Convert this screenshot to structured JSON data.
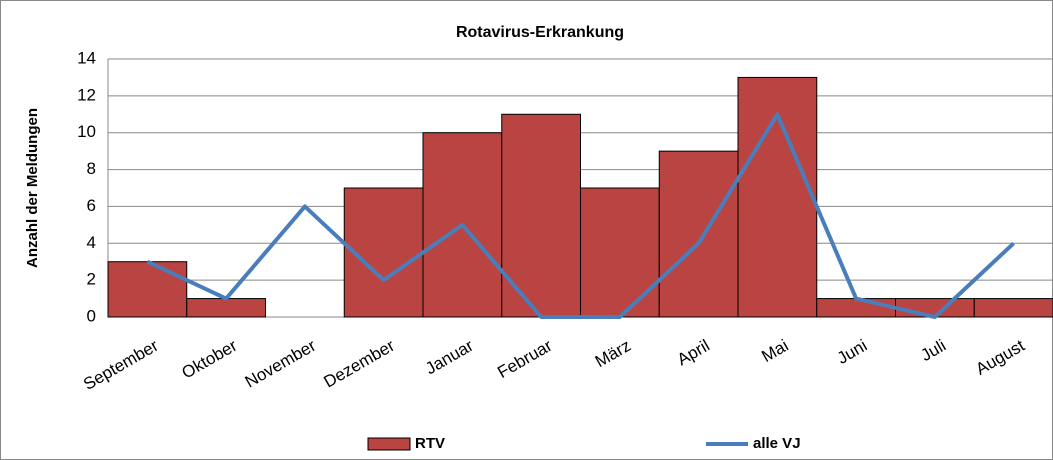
{
  "chart_data": {
    "type": "bar",
    "title": "Rotavirus-Erkrankung",
    "y_label": "Anzahl der Meldungen",
    "categories": [
      "September",
      "Oktober",
      "November",
      "Dezember",
      "Januar",
      "Februar",
      "März",
      "April",
      "Mai",
      "Juni",
      "Juli",
      "August"
    ],
    "series": [
      {
        "name": "RTV",
        "type": "bar",
        "color": "#b94441",
        "values": [
          3,
          1,
          0,
          7,
          10,
          11,
          7,
          9,
          13,
          1,
          1,
          1
        ]
      },
      {
        "name": "alle VJ",
        "type": "line",
        "color": "#4a7ebb",
        "values": [
          3,
          1,
          6,
          2,
          5,
          0,
          0,
          4,
          11,
          1,
          0,
          4
        ]
      }
    ],
    "ylim": [
      0,
      14
    ],
    "yticks": [
      0,
      2,
      4,
      6,
      8,
      10,
      12,
      14
    ],
    "grid": true,
    "legend": "bottom"
  }
}
